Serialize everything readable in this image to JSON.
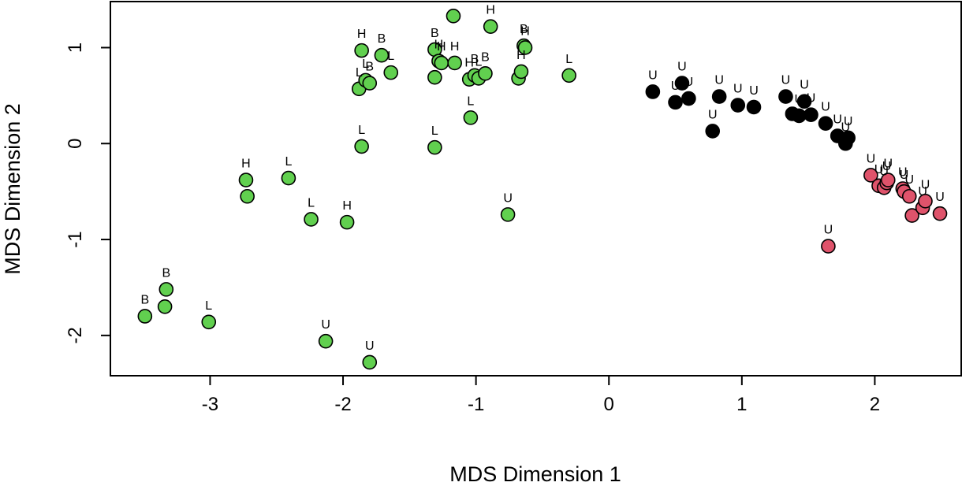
{
  "chart_data": {
    "type": "scatter",
    "title": "",
    "xlabel": "MDS Dimension 1",
    "ylabel": "MDS Dimension 2",
    "xlim": [
      -3.75,
      2.65
    ],
    "ylim": [
      -2.42,
      1.48
    ],
    "x_ticks": [
      -3,
      -2,
      -1,
      0,
      1,
      2
    ],
    "y_ticks": [
      -2,
      -1,
      0,
      1
    ],
    "grid": false,
    "legend": "none",
    "colors": {
      "green": "#61D04F",
      "black": "#000000",
      "red": "#DF536B"
    },
    "points": [
      {
        "x": -3.49,
        "y": -1.8,
        "label": "B",
        "color": "green"
      },
      {
        "x": -3.34,
        "y": -1.7,
        "label": "",
        "color": "green"
      },
      {
        "x": -3.33,
        "y": -1.52,
        "label": "B",
        "color": "green"
      },
      {
        "x": -3.01,
        "y": -1.86,
        "label": "L",
        "color": "green"
      },
      {
        "x": -2.73,
        "y": -0.38,
        "label": "H",
        "color": "green"
      },
      {
        "x": -2.72,
        "y": -0.55,
        "label": "",
        "color": "green"
      },
      {
        "x": -2.41,
        "y": -0.36,
        "label": "L",
        "color": "green"
      },
      {
        "x": -2.24,
        "y": -0.79,
        "label": "L",
        "color": "green"
      },
      {
        "x": -2.13,
        "y": -2.06,
        "label": "U",
        "color": "green"
      },
      {
        "x": -1.97,
        "y": -0.82,
        "label": "H",
        "color": "green"
      },
      {
        "x": -1.88,
        "y": 0.57,
        "label": "L",
        "color": "green"
      },
      {
        "x": -1.86,
        "y": 0.97,
        "label": "H",
        "color": "green"
      },
      {
        "x": -1.86,
        "y": -0.03,
        "label": "L",
        "color": "green"
      },
      {
        "x": -1.83,
        "y": 0.66,
        "label": "L",
        "color": "green"
      },
      {
        "x": -1.8,
        "y": 0.63,
        "label": "B",
        "color": "green"
      },
      {
        "x": -1.8,
        "y": -2.28,
        "label": "U",
        "color": "green"
      },
      {
        "x": -1.71,
        "y": 0.92,
        "label": "B",
        "color": "green"
      },
      {
        "x": -1.64,
        "y": 0.74,
        "label": "L",
        "color": "green"
      },
      {
        "x": -1.31,
        "y": 0.98,
        "label": "B",
        "color": "green"
      },
      {
        "x": -1.31,
        "y": 0.69,
        "label": "",
        "color": "green"
      },
      {
        "x": -1.31,
        "y": -0.04,
        "label": "L",
        "color": "green"
      },
      {
        "x": -1.28,
        "y": 0.86,
        "label": "H",
        "color": "green"
      },
      {
        "x": -1.26,
        "y": 0.84,
        "label": "H",
        "color": "green"
      },
      {
        "x": -1.17,
        "y": 1.33,
        "label": "",
        "color": "green"
      },
      {
        "x": -1.16,
        "y": 0.84,
        "label": "H",
        "color": "green"
      },
      {
        "x": -1.05,
        "y": 0.67,
        "label": "H",
        "color": "green"
      },
      {
        "x": -1.04,
        "y": 0.27,
        "label": "L",
        "color": "green"
      },
      {
        "x": -1.01,
        "y": 0.71,
        "label": "B",
        "color": "green"
      },
      {
        "x": -0.98,
        "y": 0.68,
        "label": "L",
        "color": "green"
      },
      {
        "x": -0.93,
        "y": 0.73,
        "label": "B",
        "color": "green"
      },
      {
        "x": -0.89,
        "y": 1.22,
        "label": "H",
        "color": "green"
      },
      {
        "x": -0.76,
        "y": -0.74,
        "label": "U",
        "color": "green"
      },
      {
        "x": -0.68,
        "y": 0.68,
        "label": "",
        "color": "green"
      },
      {
        "x": -0.66,
        "y": 0.75,
        "label": "H",
        "color": "green"
      },
      {
        "x": -0.64,
        "y": 1.02,
        "label": "B",
        "color": "green"
      },
      {
        "x": -0.63,
        "y": 1.0,
        "label": "H",
        "color": "green"
      },
      {
        "x": -0.3,
        "y": 0.71,
        "label": "L",
        "color": "green"
      },
      {
        "x": 0.33,
        "y": 0.54,
        "label": "U",
        "color": "black"
      },
      {
        "x": 0.5,
        "y": 0.43,
        "label": "U",
        "color": "black"
      },
      {
        "x": 0.55,
        "y": 0.63,
        "label": "U",
        "color": "black"
      },
      {
        "x": 0.6,
        "y": 0.47,
        "label": "U",
        "color": "black"
      },
      {
        "x": 0.78,
        "y": 0.13,
        "label": "U",
        "color": "black"
      },
      {
        "x": 0.83,
        "y": 0.49,
        "label": "U",
        "color": "black"
      },
      {
        "x": 0.97,
        "y": 0.4,
        "label": "U",
        "color": "black"
      },
      {
        "x": 1.09,
        "y": 0.38,
        "label": "U",
        "color": "black"
      },
      {
        "x": 1.33,
        "y": 0.49,
        "label": "U",
        "color": "black"
      },
      {
        "x": 1.38,
        "y": 0.31,
        "label": "",
        "color": "black"
      },
      {
        "x": 1.43,
        "y": 0.29,
        "label": "U",
        "color": "black"
      },
      {
        "x": 1.47,
        "y": 0.44,
        "label": "U",
        "color": "black"
      },
      {
        "x": 1.52,
        "y": 0.3,
        "label": "U",
        "color": "black"
      },
      {
        "x": 1.63,
        "y": 0.21,
        "label": "U",
        "color": "black"
      },
      {
        "x": 1.72,
        "y": 0.08,
        "label": "U",
        "color": "black"
      },
      {
        "x": 1.78,
        "y": 0.0,
        "label": "U",
        "color": "black"
      },
      {
        "x": 1.8,
        "y": 0.06,
        "label": "U",
        "color": "black"
      },
      {
        "x": 1.65,
        "y": -1.07,
        "label": "U",
        "color": "red"
      },
      {
        "x": 1.97,
        "y": -0.33,
        "label": "U",
        "color": "red"
      },
      {
        "x": 2.03,
        "y": -0.44,
        "label": "U",
        "color": "red"
      },
      {
        "x": 2.07,
        "y": -0.46,
        "label": "U",
        "color": "red"
      },
      {
        "x": 2.09,
        "y": -0.41,
        "label": "U",
        "color": "red"
      },
      {
        "x": 2.1,
        "y": -0.38,
        "label": "U",
        "color": "red"
      },
      {
        "x": 2.21,
        "y": -0.47,
        "label": "U",
        "color": "red"
      },
      {
        "x": 2.22,
        "y": -0.5,
        "label": "U",
        "color": "red"
      },
      {
        "x": 2.26,
        "y": -0.55,
        "label": "U",
        "color": "red"
      },
      {
        "x": 2.28,
        "y": -0.75,
        "label": "",
        "color": "red"
      },
      {
        "x": 2.36,
        "y": -0.67,
        "label": "U",
        "color": "red"
      },
      {
        "x": 2.38,
        "y": -0.6,
        "label": "U",
        "color": "red"
      },
      {
        "x": 2.49,
        "y": -0.73,
        "label": "U",
        "color": "red"
      }
    ]
  }
}
